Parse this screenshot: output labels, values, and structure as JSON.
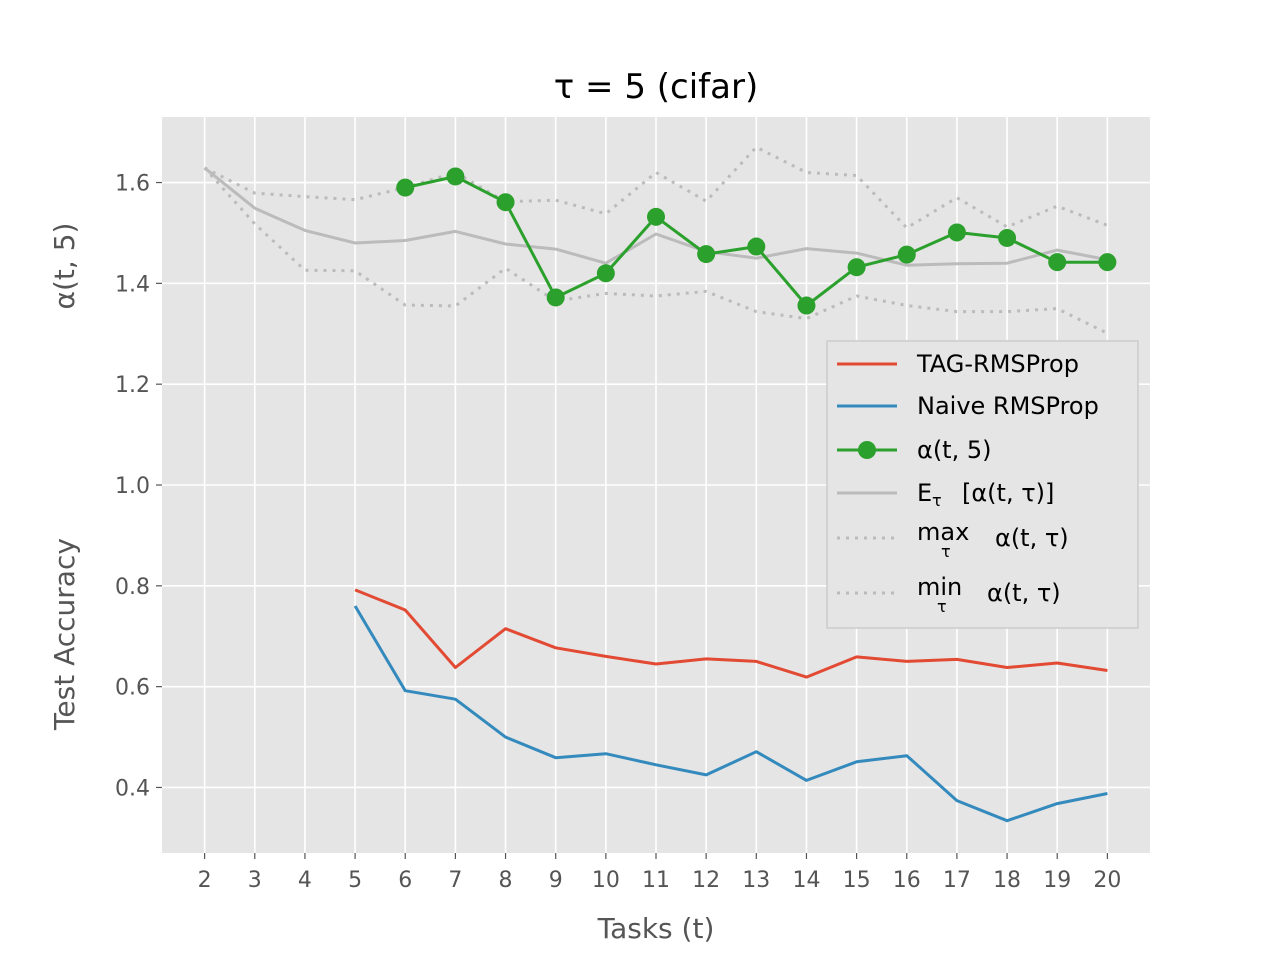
{
  "chart_data": {
    "type": "line",
    "title": "τ = 5 (cifar)",
    "xlabel": "Tasks (t)",
    "ylabel_upper": "α(t, 5)",
    "ylabel_lower": "Test Accuracy",
    "xlim": [
      1.15,
      20.85
    ],
    "ylim": [
      0.27,
      1.73
    ],
    "x_ticks": [
      2,
      3,
      4,
      5,
      6,
      7,
      8,
      9,
      10,
      11,
      12,
      13,
      14,
      15,
      16,
      17,
      18,
      19,
      20
    ],
    "y_ticks": [
      {
        "value": 0.4,
        "label": "0.4"
      },
      {
        "value": 0.6,
        "label": "0.6"
      },
      {
        "value": 0.8,
        "label": "0.8"
      },
      {
        "value": 1.0,
        "label": "1.0"
      },
      {
        "value": 1.2,
        "label": "1.2"
      },
      {
        "value": 1.4,
        "label": "1.4"
      },
      {
        "value": 1.6,
        "label": "1.6"
      }
    ],
    "grid": true,
    "legend_position": "right",
    "colors": {
      "background": "#e5e5e5",
      "grid": "#ffffff",
      "tag": "#e24a33",
      "naive": "#348abd",
      "alpha": "#2ca02c",
      "gray": "#bbbbbb"
    },
    "series": [
      {
        "key": "tag",
        "name": "TAG-RMSProp",
        "style": "solid",
        "x": [
          5,
          6,
          7,
          8,
          9,
          10,
          11,
          12,
          13,
          14,
          15,
          16,
          17,
          18,
          19,
          20
        ],
        "y": [
          0.792,
          0.752,
          0.638,
          0.715,
          0.677,
          0.66,
          0.645,
          0.655,
          0.65,
          0.619,
          0.659,
          0.65,
          0.654,
          0.638,
          0.647,
          0.632
        ]
      },
      {
        "key": "naive",
        "name": "Naive RMSProp",
        "style": "solid",
        "x": [
          5,
          6,
          7,
          8,
          9,
          10,
          11,
          12,
          13,
          14,
          15,
          16,
          17,
          18,
          19,
          20
        ],
        "y": [
          0.76,
          0.592,
          0.575,
          0.5,
          0.459,
          0.467,
          0.445,
          0.425,
          0.471,
          0.414,
          0.451,
          0.463,
          0.374,
          0.334,
          0.368,
          0.388
        ]
      },
      {
        "key": "alpha",
        "name": "α(t, 5)",
        "style": "marker",
        "x": [
          6,
          7,
          8,
          9,
          10,
          11,
          12,
          13,
          14,
          15,
          16,
          17,
          18,
          19,
          20
        ],
        "y": [
          1.59,
          1.612,
          1.561,
          1.372,
          1.42,
          1.532,
          1.458,
          1.473,
          1.356,
          1.432,
          1.457,
          1.501,
          1.49,
          1.442,
          1.442
        ]
      },
      {
        "key": "mean",
        "name": "E_τ [α(t, τ)]",
        "style": "solid-gray",
        "x": [
          2,
          3,
          4,
          5,
          6,
          7,
          8,
          9,
          10,
          11,
          12,
          13,
          14,
          15,
          16,
          17,
          18,
          19,
          20
        ],
        "y": [
          1.629,
          1.549,
          1.505,
          1.48,
          1.485,
          1.503,
          1.478,
          1.468,
          1.44,
          1.498,
          1.463,
          1.45,
          1.469,
          1.46,
          1.436,
          1.439,
          1.44,
          1.466,
          1.447
        ]
      },
      {
        "key": "max",
        "name": "max α(t, τ)",
        "style": "dotted",
        "x": [
          2,
          3,
          4,
          5,
          6,
          7,
          8,
          9,
          10,
          11,
          12,
          13,
          14,
          15,
          16,
          17,
          18,
          19,
          20
        ],
        "y": [
          1.629,
          1.579,
          1.572,
          1.566,
          1.59,
          1.62,
          1.562,
          1.565,
          1.538,
          1.62,
          1.563,
          1.67,
          1.62,
          1.614,
          1.51,
          1.57,
          1.512,
          1.553,
          1.515
        ]
      },
      {
        "key": "min",
        "name": "min α(t, τ)",
        "style": "dotted",
        "x": [
          2,
          3,
          4,
          5,
          6,
          7,
          8,
          9,
          10,
          11,
          12,
          13,
          14,
          15,
          16,
          17,
          18,
          19,
          20
        ],
        "y": [
          1.629,
          1.518,
          1.426,
          1.425,
          1.357,
          1.355,
          1.43,
          1.365,
          1.38,
          1.375,
          1.384,
          1.344,
          1.33,
          1.375,
          1.356,
          1.344,
          1.344,
          1.35,
          1.301
        ]
      }
    ],
    "legend": {
      "tag": "TAG-RMSProp",
      "naive": "Naive RMSProp",
      "alpha": "α(t, 5)",
      "mean_main": "E",
      "mean_sub": "τ",
      "mean_rest": "[α(t, τ)]",
      "max_main": "max",
      "max_sub": "τ",
      "max_rest": "α(t, τ)",
      "min_main": "min",
      "min_sub": "τ",
      "min_rest": "α(t, τ)"
    }
  }
}
